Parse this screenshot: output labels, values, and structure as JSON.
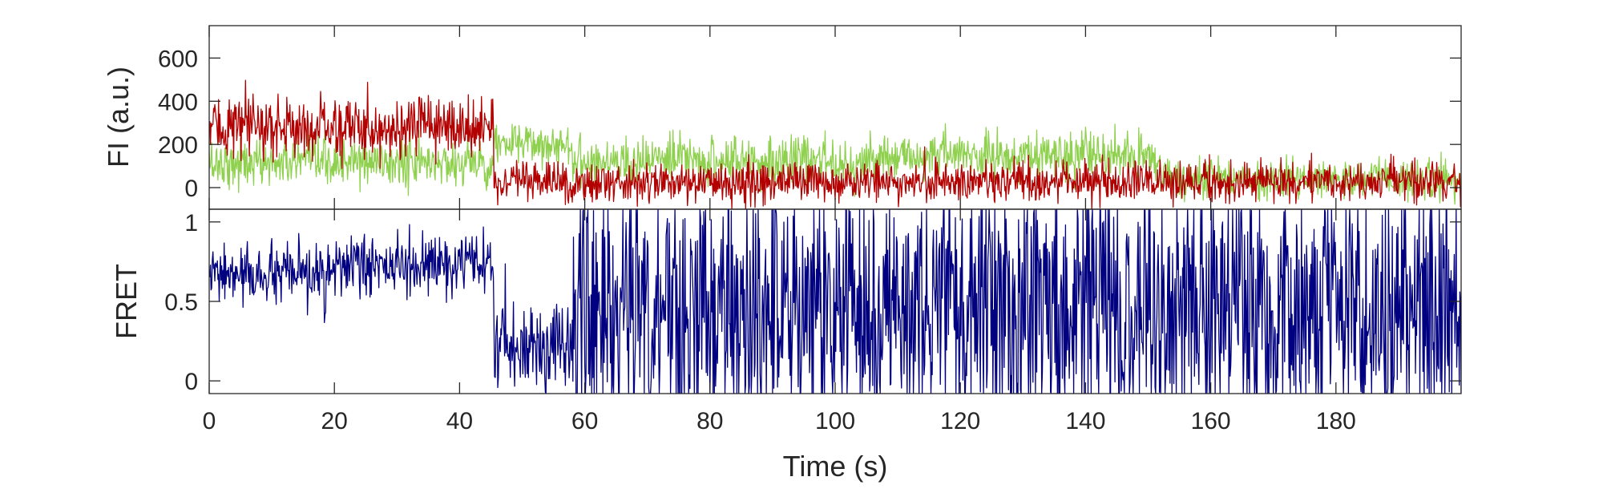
{
  "chart_data": [
    {
      "type": "line",
      "panel": "top",
      "ylabel": "FI (a.u.)",
      "xlabel": "",
      "xlim": [
        0,
        200
      ],
      "ylim": [
        -100,
        750
      ],
      "yticks": [
        0,
        200,
        400,
        600
      ],
      "ytick_labels": [
        "0",
        "200",
        "400",
        "600"
      ],
      "grid": false,
      "legend": "none",
      "series": [
        {
          "color": "#8fd14f",
          "segments": [
            {
              "x": [
                0,
                45.5
              ],
              "mean": 115,
              "noise": 55
            },
            {
              "x": [
                45.5,
                58
              ],
              "mean": 200,
              "noise": 45
            },
            {
              "x": [
                58,
                110
              ],
              "mean": 125,
              "noise": 55
            },
            {
              "x": [
                110,
                152
              ],
              "mean": 145,
              "noise": 55
            },
            {
              "x": [
                152,
                200
              ],
              "mean": 40,
              "noise": 45
            }
          ]
        },
        {
          "color": "#b30000",
          "segments": [
            {
              "x": [
                0,
                45.5
              ],
              "mean": 280,
              "noise": 70
            },
            {
              "x": [
                45.5,
                200
              ],
              "mean": 25,
              "noise": 45
            }
          ]
        }
      ]
    },
    {
      "type": "line",
      "panel": "bottom",
      "ylabel": "FRET",
      "xlabel": "Time (s)",
      "xlim": [
        0,
        200
      ],
      "ylim": [
        -0.08,
        1.08
      ],
      "yticks": [
        0,
        0.5,
        1
      ],
      "ytick_labels": [
        "0",
        "0.5",
        "1"
      ],
      "xticks": [
        0,
        20,
        40,
        60,
        80,
        100,
        120,
        140,
        160,
        180
      ],
      "xtick_labels": [
        "0",
        "20",
        "40",
        "60",
        "80",
        "100",
        "120",
        "140",
        "160",
        "180"
      ],
      "grid": false,
      "legend": "none",
      "series": [
        {
          "color": "#000080",
          "segments": [
            {
              "x": [
                0,
                20
              ],
              "mean": 0.66,
              "noise": 0.09
            },
            {
              "x": [
                20,
                45.5
              ],
              "mean": 0.72,
              "noise": 0.09
            },
            {
              "x": [
                45.5,
                58
              ],
              "mean": 0.22,
              "noise": 0.14
            },
            {
              "x": [
                58,
                200
              ],
              "mean": 0.45,
              "noise": 0.45
            }
          ]
        }
      ]
    }
  ]
}
